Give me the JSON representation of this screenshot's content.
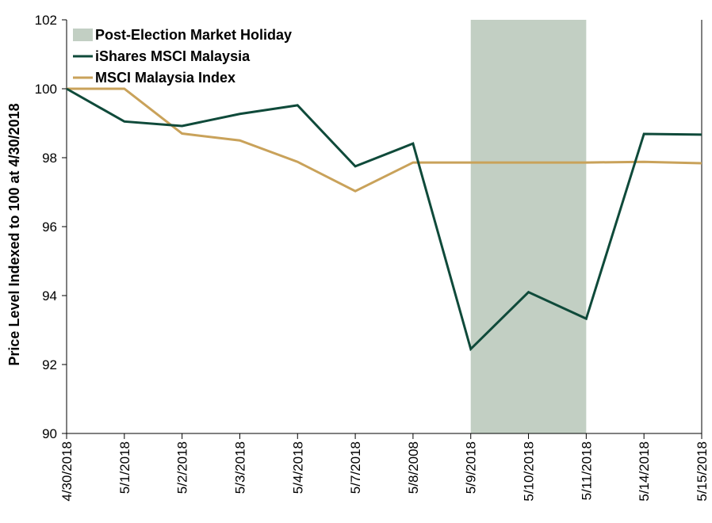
{
  "chart_data": {
    "type": "line",
    "title": "",
    "xlabel": "",
    "ylabel": "Price Level Indexed to 100 at 4/30/2018",
    "ylim": [
      90,
      102
    ],
    "yticks": [
      90,
      92,
      94,
      96,
      98,
      100,
      102
    ],
    "categories": [
      "4/30/2018",
      "5/1/2018",
      "5/2/2018",
      "5/3/2018",
      "5/4/2018",
      "5/7/2018",
      "5/8/2008",
      "5/9/2018",
      "5/10/2018",
      "5/11/2018",
      "5/14/2018",
      "5/15/2018"
    ],
    "shaded_region": {
      "name": "Post-Election Market Holiday",
      "from_category": "5/9/2018",
      "to_category": "5/11/2018",
      "color": "#c2cfc3"
    },
    "series": [
      {
        "name": "iShares MSCI Malaysia",
        "color": "#0f4a3a",
        "values": [
          100.0,
          99.05,
          98.92,
          99.27,
          99.52,
          97.75,
          98.41,
          92.45,
          94.1,
          93.33,
          98.69,
          98.67
        ]
      },
      {
        "name": "MSCI Malaysia Index",
        "color": "#c9a25a",
        "values": [
          100.0,
          100.0,
          98.7,
          98.5,
          97.88,
          97.03,
          97.86,
          97.86,
          97.86,
          97.86,
          97.88,
          97.84
        ]
      }
    ],
    "grid": false,
    "legend_position": "top-left"
  }
}
